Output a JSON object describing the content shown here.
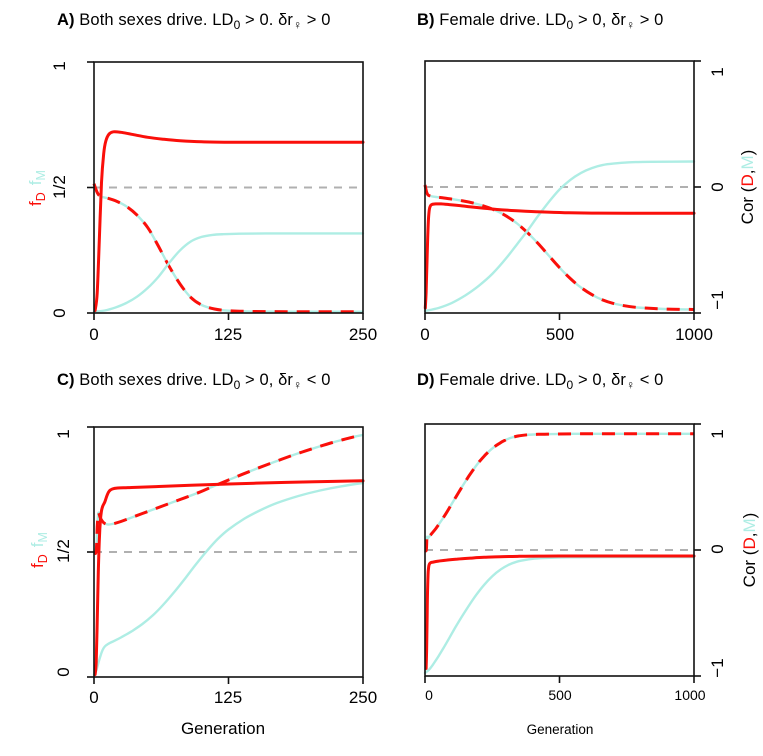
{
  "figure": {
    "background": "#ffffff",
    "colors": {
      "red": "#FA0F0A",
      "cyan": "#AEEDE4",
      "gray_reference": "#B0B0B0",
      "frame": "#111111",
      "text": "#000000"
    },
    "left_axis": {
      "ticks": [
        "0",
        "1/2",
        "1"
      ],
      "range": [
        0,
        1
      ],
      "fD": {
        "base": "f",
        "sub": "D"
      },
      "fM": {
        "base": "f",
        "sub": "M"
      }
    },
    "right_axis": {
      "ticks": [
        "−1",
        "0",
        "1"
      ],
      "range": [
        -1,
        1
      ],
      "label_parts": [
        "Cor (",
        "D",
        ",",
        "M",
        ")"
      ]
    }
  },
  "chart_data": [
    {
      "type": "line",
      "panel": "A",
      "title": "A) Both sexes drive. LD0 > 0. δr♀ > 0",
      "title_parts": {
        "letter": "A)",
        "pre": " Both sexes drive. LD",
        "sub1": "0",
        "mid": " > 0. δr",
        "sub2": "♀",
        "post": " > 0"
      },
      "x_label": "",
      "x_max": 250,
      "x_ticks": [
        0,
        125,
        250
      ],
      "x_tick_labels": [
        "0",
        "125",
        "250"
      ],
      "y_tick_side": "left",
      "reference_line_y": 0.5,
      "grid": false,
      "series": [
        {
          "name": "f_D",
          "axis": "left",
          "style": "solid",
          "color_key": "red",
          "x": [
            1,
            3,
            5,
            7,
            9,
            11,
            14,
            18,
            25,
            35,
            50,
            65,
            80,
            100,
            125,
            160,
            200,
            250
          ],
          "y": [
            0.01,
            0.08,
            0.3,
            0.52,
            0.635,
            0.685,
            0.713,
            0.722,
            0.72,
            0.712,
            0.7,
            0.692,
            0.686,
            0.682,
            0.68,
            0.68,
            0.68,
            0.68
          ]
        },
        {
          "name": "f_M",
          "axis": "left",
          "style": "solid",
          "color_key": "cyan",
          "x": [
            0,
            10,
            20,
            30,
            40,
            50,
            60,
            70,
            80,
            90,
            100,
            110,
            120,
            135,
            160,
            200,
            250
          ],
          "y": [
            0.005,
            0.01,
            0.022,
            0.04,
            0.065,
            0.1,
            0.145,
            0.2,
            0.25,
            0.285,
            0.303,
            0.311,
            0.314,
            0.316,
            0.317,
            0.317,
            0.317
          ]
        },
        {
          "name": "Cor(D,M)",
          "axis": "right",
          "style": "dashed-bicolor",
          "color_key": "red-on-cyan",
          "x": [
            0,
            3,
            6,
            12,
            20,
            30,
            40,
            50,
            60,
            70,
            80,
            90,
            100,
            112,
            125,
            150,
            200,
            250
          ],
          "y": [
            0.03,
            -0.04,
            -0.07,
            -0.084,
            -0.106,
            -0.15,
            -0.22,
            -0.32,
            -0.47,
            -0.63,
            -0.77,
            -0.876,
            -0.936,
            -0.968,
            -0.982,
            -0.988,
            -0.99,
            -0.99
          ]
        }
      ]
    },
    {
      "type": "line",
      "panel": "B",
      "title": "B) Female drive. LD0 > 0, δr♀ > 0",
      "title_parts": {
        "letter": "B)",
        "pre": " Female drive. LD",
        "sub1": "0",
        "mid": " > 0, δr",
        "sub2": "♀",
        "post": " > 0"
      },
      "x_label": "",
      "x_max": 1000,
      "x_ticks": [
        0,
        500,
        1000
      ],
      "x_tick_labels": [
        "0",
        "500",
        "1000"
      ],
      "y_tick_side": "right",
      "reference_line_y": 0.5,
      "grid": false,
      "series": [
        {
          "name": "f_D",
          "axis": "left",
          "style": "solid",
          "color_key": "red",
          "x": [
            1,
            4,
            7,
            10,
            13,
            16,
            20,
            26,
            40,
            60,
            90,
            130,
            170,
            220,
            280,
            350,
            430,
            520,
            620,
            750,
            1000
          ],
          "y": [
            0.02,
            0.08,
            0.19,
            0.3,
            0.375,
            0.41,
            0.425,
            0.431,
            0.433,
            0.433,
            0.43,
            0.426,
            0.421,
            0.416,
            0.41,
            0.405,
            0.401,
            0.398,
            0.3965,
            0.396,
            0.396
          ]
        },
        {
          "name": "f_M",
          "axis": "left",
          "style": "solid",
          "color_key": "cyan",
          "x": [
            0,
            50,
            100,
            150,
            200,
            250,
            300,
            340,
            380,
            420,
            460,
            500,
            540,
            580,
            620,
            660,
            700,
            760,
            840,
            1000
          ],
          "y": [
            0.008,
            0.02,
            0.04,
            0.07,
            0.108,
            0.155,
            0.215,
            0.27,
            0.325,
            0.385,
            0.44,
            0.49,
            0.528,
            0.556,
            0.575,
            0.587,
            0.593,
            0.598,
            0.6,
            0.601
          ]
        },
        {
          "name": "Cor(D,M)",
          "axis": "right",
          "style": "dashed-bicolor",
          "color_key": "red-on-cyan",
          "x": [
            0,
            6,
            12,
            30,
            60,
            100,
            140,
            180,
            220,
            260,
            300,
            340,
            380,
            420,
            460,
            500,
            540,
            580,
            620,
            660,
            700,
            740,
            790,
            850,
            920,
            1000
          ],
          "y": [
            0.016,
            -0.04,
            -0.064,
            -0.076,
            -0.084,
            -0.096,
            -0.11,
            -0.128,
            -0.152,
            -0.184,
            -0.228,
            -0.286,
            -0.36,
            -0.448,
            -0.544,
            -0.64,
            -0.726,
            -0.798,
            -0.854,
            -0.896,
            -0.924,
            -0.942,
            -0.956,
            -0.964,
            -0.97,
            -0.972
          ]
        }
      ]
    },
    {
      "type": "line",
      "panel": "C",
      "title": "C) Both sexes drive. LD0 > 0, δr♀ < 0",
      "title_parts": {
        "letter": "C)",
        "pre": " Both sexes drive. LD",
        "sub1": "0",
        "mid": " > 0, δr",
        "sub2": "♀",
        "post": " < 0"
      },
      "x_label": "Generation",
      "x_max": 250,
      "x_ticks": [
        0,
        125,
        250
      ],
      "x_tick_labels": [
        "0",
        "125",
        "250"
      ],
      "y_tick_side": "left",
      "reference_line_y": 0.5,
      "grid": false,
      "series": [
        {
          "name": "f_D",
          "axis": "left",
          "style": "solid",
          "color_key": "red",
          "x": [
            1,
            2,
            3,
            4,
            5,
            6,
            7,
            8,
            10,
            12,
            14,
            17,
            22,
            35,
            60,
            90,
            125,
            165,
            205,
            250
          ],
          "y": [
            0.01,
            0.06,
            0.22,
            0.42,
            0.555,
            0.63,
            0.665,
            0.682,
            0.7,
            0.725,
            0.743,
            0.752,
            0.756,
            0.758,
            0.762,
            0.767,
            0.772,
            0.777,
            0.781,
            0.785
          ]
        },
        {
          "name": "f_M",
          "axis": "left",
          "style": "solid",
          "color_key": "cyan",
          "x": [
            0,
            2,
            4,
            6,
            8,
            10,
            13,
            18,
            25,
            35,
            45,
            55,
            65,
            75,
            85,
            95,
            105,
            115,
            125,
            140,
            155,
            170,
            190,
            210,
            230,
            250
          ],
          "y": [
            0.01,
            0.025,
            0.055,
            0.085,
            0.108,
            0.122,
            0.132,
            0.143,
            0.158,
            0.183,
            0.212,
            0.248,
            0.292,
            0.342,
            0.396,
            0.452,
            0.505,
            0.552,
            0.59,
            0.634,
            0.668,
            0.696,
            0.724,
            0.746,
            0.763,
            0.776
          ]
        },
        {
          "name": "Cor(D,M)",
          "axis": "right",
          "style": "dashed-bicolor",
          "color_key": "red-on-cyan",
          "x": [
            0,
            2,
            3,
            4,
            5,
            6,
            8,
            10,
            13,
            17,
            25,
            35,
            50,
            65,
            80,
            95,
            105,
            115,
            130,
            145,
            160,
            175,
            190,
            205,
            220,
            232,
            242,
            250
          ],
          "y": [
            0.0,
            0.004,
            0.2,
            0.31,
            0.296,
            0.27,
            0.244,
            0.228,
            0.22,
            0.224,
            0.244,
            0.276,
            0.324,
            0.372,
            0.42,
            0.468,
            0.504,
            0.54,
            0.594,
            0.646,
            0.696,
            0.744,
            0.79,
            0.832,
            0.872,
            0.9,
            0.922,
            0.936
          ]
        }
      ]
    },
    {
      "type": "line",
      "panel": "D",
      "title": "D) Female drive. LD0 > 0, δr♀ < 0",
      "title_parts": {
        "letter": "D)",
        "pre": " Female drive. LD",
        "sub1": "0",
        "mid": " > 0, δr",
        "sub2": "♀",
        "post": " < 0"
      },
      "x_label": "Generation",
      "x_max": 1000,
      "x_ticks": [
        0,
        500,
        1000
      ],
      "x_tick_labels": [
        "0",
        "500",
        "1000"
      ],
      "y_tick_side": "right",
      "reference_line_y": 0.5,
      "grid": false,
      "series": [
        {
          "name": "f_D",
          "axis": "left",
          "style": "solid",
          "color_key": "red",
          "x": [
            4,
            6,
            8,
            10,
            12,
            15,
            20,
            30,
            50,
            80,
            120,
            170,
            220,
            280,
            350,
            420,
            500,
            700,
            1000
          ],
          "y": [
            0.03,
            0.1,
            0.25,
            0.36,
            0.415,
            0.44,
            0.449,
            0.452,
            0.456,
            0.46,
            0.464,
            0.468,
            0.471,
            0.4735,
            0.475,
            0.4757,
            0.476,
            0.476,
            0.476
          ]
        },
        {
          "name": "f_M",
          "axis": "left",
          "style": "solid",
          "color_key": "cyan",
          "x": [
            0,
            15,
            30,
            50,
            70,
            90,
            110,
            135,
            160,
            190,
            220,
            250,
            280,
            310,
            340,
            370,
            400,
            440,
            490,
            560,
            700,
            1000
          ],
          "y": [
            0.012,
            0.025,
            0.046,
            0.078,
            0.113,
            0.15,
            0.188,
            0.232,
            0.274,
            0.321,
            0.362,
            0.396,
            0.422,
            0.441,
            0.453,
            0.46,
            0.465,
            0.468,
            0.47,
            0.471,
            0.472,
            0.472
          ]
        },
        {
          "name": "Cor(D,M)",
          "axis": "right",
          "style": "dashed-bicolor",
          "color_key": "red-on-cyan",
          "x": [
            0,
            5,
            7,
            10,
            15,
            25,
            40,
            60,
            80,
            100,
            125,
            150,
            175,
            200,
            225,
            250,
            275,
            300,
            325,
            350,
            380,
            420,
            470,
            550,
            700,
            1000
          ],
          "y": [
            0.0,
            0.0,
            0.1,
            0.09,
            0.104,
            0.13,
            0.17,
            0.23,
            0.296,
            0.368,
            0.456,
            0.544,
            0.624,
            0.696,
            0.756,
            0.806,
            0.844,
            0.874,
            0.894,
            0.906,
            0.914,
            0.918,
            0.92,
            0.922,
            0.922,
            0.922
          ]
        }
      ]
    }
  ]
}
